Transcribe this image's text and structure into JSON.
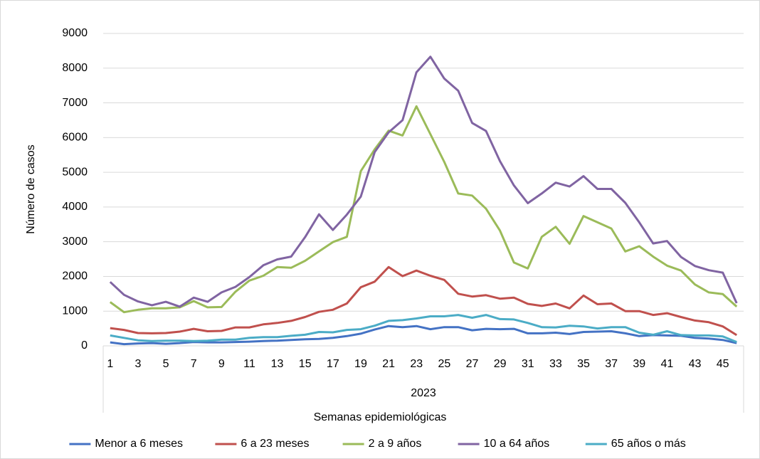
{
  "chart_data": {
    "type": "line",
    "y_label": "Número de casos",
    "x_label": "Semanas epidemiológicas",
    "x_group_label": "2023",
    "categories": [
      "1",
      null,
      "3",
      null,
      "5",
      null,
      "7",
      null,
      "9",
      null,
      "11",
      null,
      "13",
      null,
      "15",
      null,
      "17",
      null,
      "19",
      null,
      "21",
      null,
      "23",
      null,
      "25",
      null,
      "27",
      null,
      "29",
      null,
      "31",
      null,
      "33",
      null,
      "35",
      null,
      "37",
      null,
      "39",
      null,
      "41",
      null,
      "43",
      null,
      "45",
      null
    ],
    "ylim": [
      0,
      9000
    ],
    "yticks": [
      0,
      1000,
      2000,
      3000,
      4000,
      5000,
      6000,
      7000,
      8000,
      9000
    ],
    "grid": true,
    "legend": "bottom",
    "series": [
      {
        "name": "Menor a 6 meses",
        "color": "#4472c4",
        "values": [
          100,
          50,
          70,
          80,
          60,
          80,
          110,
          100,
          100,
          110,
          120,
          140,
          150,
          170,
          190,
          200,
          230,
          280,
          350,
          470,
          570,
          540,
          570,
          480,
          540,
          540,
          450,
          490,
          480,
          490,
          360,
          360,
          380,
          340,
          400,
          410,
          420,
          360,
          280,
          310,
          300,
          290,
          230,
          210,
          170,
          80
        ]
      },
      {
        "name": "6 a 23 meses",
        "color": "#c0504d",
        "values": [
          510,
          460,
          370,
          360,
          370,
          410,
          490,
          420,
          430,
          530,
          530,
          620,
          660,
          720,
          830,
          980,
          1040,
          1220,
          1690,
          1850,
          2270,
          2010,
          2170,
          2020,
          1900,
          1500,
          1420,
          1460,
          1360,
          1390,
          1210,
          1150,
          1220,
          1080,
          1450,
          1200,
          1220,
          1000,
          1000,
          890,
          940,
          830,
          730,
          680,
          560,
          310
        ]
      },
      {
        "name": "2 a 9 años",
        "color": "#9bbb59",
        "values": [
          1260,
          970,
          1040,
          1080,
          1080,
          1110,
          1290,
          1110,
          1120,
          1560,
          1880,
          2020,
          2270,
          2250,
          2450,
          2720,
          2990,
          3140,
          5030,
          5660,
          6200,
          6060,
          6900,
          6100,
          5300,
          4390,
          4330,
          3950,
          3320,
          2400,
          2230,
          3140,
          3430,
          2940,
          3740,
          3560,
          3380,
          2720,
          2870,
          2570,
          2310,
          2170,
          1770,
          1540,
          1490,
          1130
        ]
      },
      {
        "name": "10 a 64 años",
        "color": "#8064a2",
        "values": [
          1840,
          1470,
          1280,
          1170,
          1270,
          1130,
          1390,
          1270,
          1540,
          1700,
          1980,
          2320,
          2490,
          2570,
          3130,
          3790,
          3340,
          3780,
          4300,
          5580,
          6150,
          6500,
          7880,
          8330,
          7700,
          7350,
          6420,
          6190,
          5320,
          4620,
          4110,
          4390,
          4700,
          4590,
          4890,
          4520,
          4520,
          4120,
          3560,
          2950,
          3020,
          2560,
          2300,
          2180,
          2110,
          1230
        ]
      },
      {
        "name": "65 años o más",
        "color": "#4bacc6",
        "values": [
          300,
          230,
          160,
          140,
          150,
          150,
          140,
          150,
          180,
          180,
          230,
          250,
          250,
          290,
          320,
          400,
          390,
          460,
          480,
          580,
          720,
          740,
          790,
          850,
          850,
          890,
          810,
          890,
          770,
          760,
          660,
          540,
          530,
          580,
          560,
          500,
          540,
          540,
          380,
          320,
          420,
          310,
          300,
          300,
          270,
          110
        ]
      }
    ]
  }
}
